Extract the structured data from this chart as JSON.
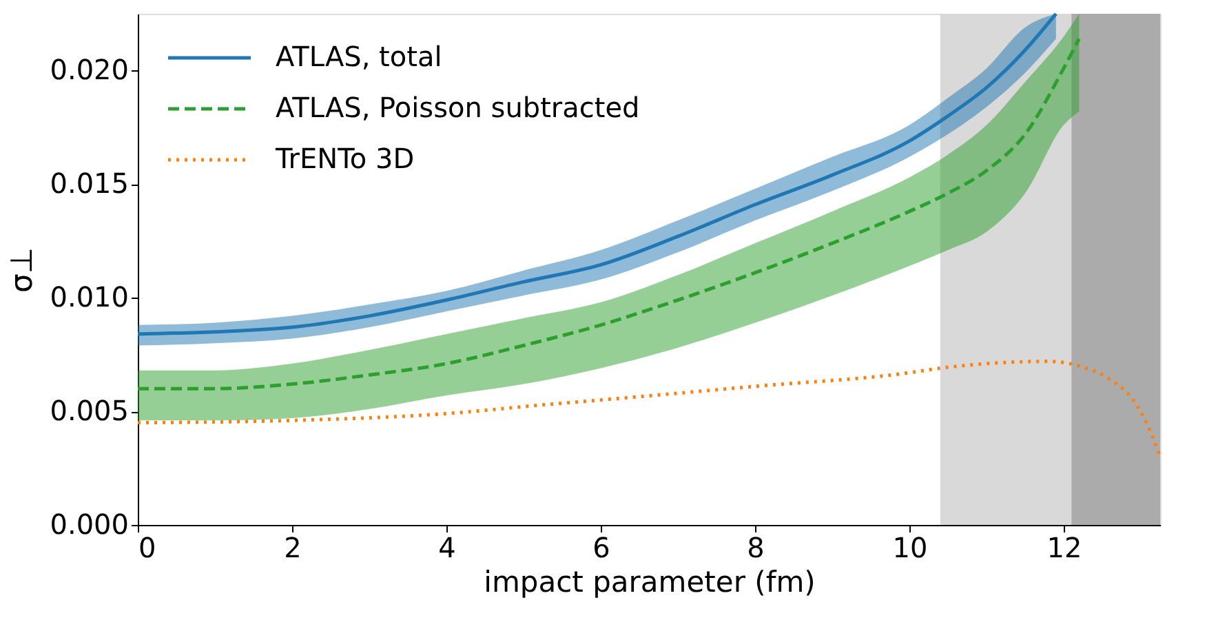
{
  "chart_data": {
    "type": "line",
    "xlabel": "impact parameter (fm)",
    "ylabel": "σ⊥",
    "xlim": [
      0,
      13.25
    ],
    "ylim": [
      0,
      0.0225
    ],
    "xticks": [
      0,
      2,
      4,
      6,
      8,
      10,
      12
    ],
    "yticks": [
      {
        "value": 0,
        "label": "0.000"
      },
      {
        "value": 0.005,
        "label": "0.005"
      },
      {
        "value": 0.01,
        "label": "0.010"
      },
      {
        "value": 0.015,
        "label": "0.015"
      },
      {
        "value": 0.02,
        "label": "0.020"
      }
    ],
    "grid": false,
    "legend": "top left",
    "marker": "none",
    "bands": [
      {
        "axis": "x",
        "from": 10.4,
        "to": 12.1,
        "color": "#d9d9d9"
      },
      {
        "axis": "x",
        "from": 12.1,
        "to": 13.25,
        "color": "#ababab"
      }
    ],
    "series": [
      {
        "name": "ATLAS, total",
        "color": "#1f77b4",
        "line_style": "solid",
        "x": [
          0,
          1,
          2,
          3,
          4,
          5,
          6,
          7,
          8,
          9,
          10,
          10.5,
          11,
          11.5,
          11.9
        ],
        "values": [
          0.0084,
          0.0085,
          0.0087,
          0.0092,
          0.0099,
          0.0107,
          0.01145,
          0.0127,
          0.0141,
          0.0154,
          0.0169,
          0.018,
          0.01925,
          0.0209,
          0.0225
        ],
        "lower": [
          0.0079,
          0.008,
          0.0082,
          0.0087,
          0.0094,
          0.0101,
          0.0108,
          0.012,
          0.0134,
          0.0147,
          0.0162,
          0.0172,
          0.0184,
          0.0199,
          0.0214
        ],
        "upper": [
          0.0088,
          0.0089,
          0.0092,
          0.0097,
          0.0103,
          0.0112,
          0.0121,
          0.0134,
          0.0148,
          0.0162,
          0.0176,
          0.0188,
          0.0201,
          0.0219,
          0.0225
        ]
      },
      {
        "name": "ATLAS, Poisson subtracted",
        "color": "#2ca02c",
        "line_style": "dashed",
        "x": [
          0,
          1,
          2,
          3,
          4,
          5,
          6,
          7,
          8,
          9,
          10,
          10.5,
          11,
          11.5,
          12,
          12.2
        ],
        "values": [
          0.006,
          0.006,
          0.0062,
          0.0066,
          0.0071,
          0.0079,
          0.0088,
          0.0099,
          0.0111,
          0.0124,
          0.0138,
          0.0146,
          0.0156,
          0.0172,
          0.0201,
          0.0214
        ],
        "lower": [
          0.0046,
          0.0046,
          0.0047,
          0.0051,
          0.0057,
          0.0062,
          0.0069,
          0.0078,
          0.0089,
          0.0101,
          0.0114,
          0.0121,
          0.0129,
          0.0146,
          0.0176,
          0.0182
        ],
        "upper": [
          0.0068,
          0.0068,
          0.0071,
          0.0077,
          0.0084,
          0.0091,
          0.0098,
          0.011,
          0.0124,
          0.0138,
          0.0153,
          0.0163,
          0.0176,
          0.0195,
          0.0215,
          0.0225
        ]
      },
      {
        "name": "TrENTo 3D",
        "color": "#ff7f0e",
        "line_style": "dotted",
        "x": [
          0,
          2,
          4,
          5.3,
          6,
          8,
          10,
          10.4,
          11,
          11.8,
          12.2,
          12.6,
          12.9,
          13.1,
          13.24
        ],
        "values": [
          0.0045,
          0.0046,
          0.0049,
          0.0053,
          0.0055,
          0.0061,
          0.0067,
          0.0069,
          0.0071,
          0.0072,
          0.007,
          0.0064,
          0.0055,
          0.0043,
          0.0031
        ]
      }
    ]
  }
}
